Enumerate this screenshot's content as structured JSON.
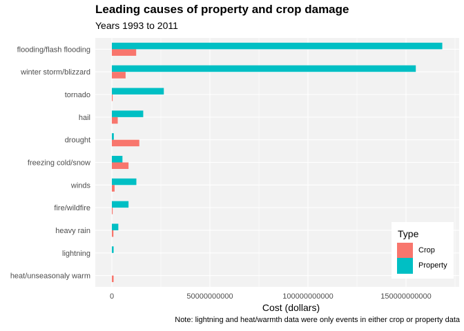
{
  "chart_data": {
    "type": "bar",
    "orientation": "horizontal",
    "title": "Leading causes of property and crop damage",
    "subtitle": "Years 1993 to 2011",
    "xlabel": "Cost (dollars)",
    "ylabel": "",
    "note": "Note: lightning and heat/warmth data were only events in either crop or property data",
    "xlim": [
      0,
      170000000000
    ],
    "xticks": [
      0,
      50000000000,
      100000000000,
      150000000000
    ],
    "xtick_labels": [
      "0",
      "50000000000",
      "100000000000",
      "150000000000"
    ],
    "grid": true,
    "legend": {
      "title": "Type",
      "position": "bottom-right"
    },
    "categories": [
      "flooding/flash flooding",
      "winter storm/blizzard",
      "tornado",
      "hail",
      "drought",
      "freezing cold/snow",
      "winds",
      "fire/wildfire",
      "heavy rain",
      "lightning",
      "heat/unseasonaly warm"
    ],
    "series": [
      {
        "name": "Crop",
        "color": "#F8766D",
        "values": [
          12400000000,
          7000000000,
          400000000,
          3000000000,
          14000000000,
          8500000000,
          1400000000,
          400000000,
          800000000,
          0,
          900000000
        ]
      },
      {
        "name": "Property",
        "color": "#00BFC4",
        "values": [
          168500000000,
          155000000000,
          26500000000,
          16000000000,
          1000000000,
          5400000000,
          12500000000,
          8500000000,
          3300000000,
          900000000,
          0
        ]
      }
    ]
  }
}
